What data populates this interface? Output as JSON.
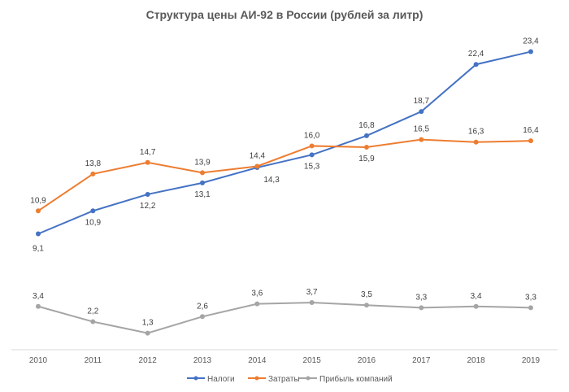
{
  "chart_data": {
    "type": "line",
    "title": "Структура цены АИ-92 в России (рублей за литр)",
    "xlabel": "",
    "ylabel": "",
    "categories": [
      "2010",
      "2011",
      "2012",
      "2013",
      "2014",
      "2015",
      "2016",
      "2017",
      "2018",
      "2019"
    ],
    "ylim": [
      0,
      27
    ],
    "grid": false,
    "legend": "bottom",
    "series": [
      {
        "name": "Налоги",
        "color": "#4472C4",
        "values": [
          9.1,
          10.9,
          12.2,
          13.1,
          14.3,
          15.3,
          16.8,
          18.7,
          22.4,
          23.4
        ],
        "labels": [
          "9,1",
          "10,9",
          "12,2",
          "13,1",
          "14,3",
          "15,3",
          "16,8",
          "18,7",
          "22,4",
          "23,4"
        ]
      },
      {
        "name": "Затраты",
        "color": "#ED7D31",
        "values": [
          10.9,
          13.8,
          14.7,
          13.9,
          14.4,
          16.0,
          15.9,
          16.5,
          16.3,
          16.4
        ],
        "labels": [
          "10,9",
          "13,8",
          "14,7",
          "13,9",
          "14,4",
          "16,0",
          "15,9",
          "16,5",
          "16,3",
          "16,4"
        ]
      },
      {
        "name": "Прибыль компаний",
        "color": "#A5A5A5",
        "values": [
          3.4,
          2.2,
          1.3,
          2.6,
          3.6,
          3.7,
          3.5,
          3.3,
          3.4,
          3.3
        ],
        "labels": [
          "3,4",
          "2,2",
          "1,3",
          "2,6",
          "3,6",
          "3,7",
          "3,5",
          "3,3",
          "3,4",
          "3,3"
        ]
      }
    ]
  }
}
